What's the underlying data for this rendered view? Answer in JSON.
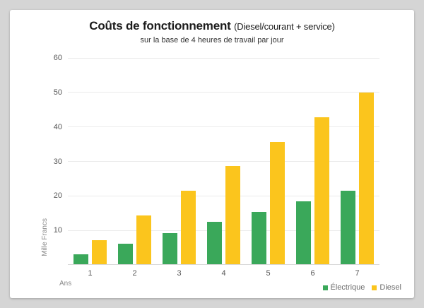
{
  "title": {
    "main": "Coûts de fonctionnement",
    "paren": "(Diesel/courant + service)",
    "subtitle": "sur la base de 4 heures de travail par jour"
  },
  "colors": {
    "electrique": "#3aa85a",
    "diesel": "#fbc51d",
    "background": "#d5d5d5",
    "card": "#ffffff"
  },
  "chart_data": {
    "type": "bar",
    "categories": [
      "1",
      "2",
      "3",
      "4",
      "5",
      "6",
      "7"
    ],
    "series": [
      {
        "name": "Électrique",
        "color": "#3aa85a",
        "values": [
          3.1,
          6.2,
          9.3,
          12.4,
          15.4,
          18.5,
          21.5
        ]
      },
      {
        "name": "Diesel",
        "color": "#fbc51d",
        "values": [
          7.1,
          14.3,
          21.5,
          28.6,
          35.7,
          42.9,
          50
        ]
      }
    ],
    "title": "Coûts de fonctionnement (Diesel/courant + service)",
    "subtitle": "sur la base de 4 heures de travail par jour",
    "xlabel": "Ans",
    "ylabel": "Mille Francs",
    "ylim": [
      0,
      60
    ],
    "yticks": [
      10,
      20,
      30,
      40,
      50,
      60
    ],
    "grid": true,
    "legend_position": "bottom-right"
  }
}
